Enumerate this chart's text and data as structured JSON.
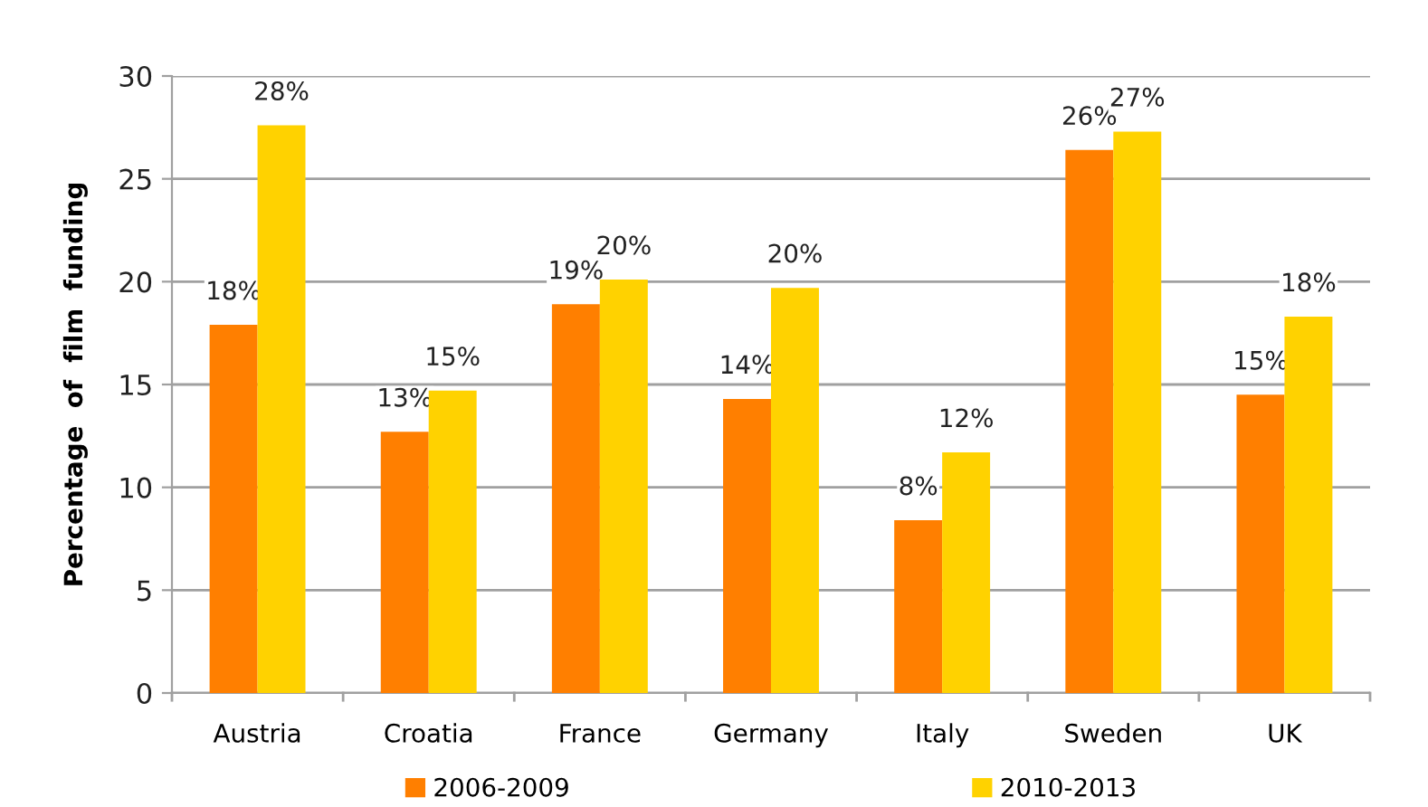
{
  "chart_data": {
    "type": "bar",
    "ylabel": "Percentage  of  film  funding",
    "categories": [
      "Austria",
      "Croatia",
      "France",
      "Germany",
      "Italy",
      "Sweden",
      "UK"
    ],
    "series": [
      {
        "name": "2006-2009",
        "color": "#ff7f00",
        "values": [
          17.9,
          12.7,
          18.9,
          14.3,
          8.4,
          26.4,
          14.5
        ],
        "value_labels": [
          "18%",
          "13%",
          "19%",
          "14%",
          "8%",
          "26%",
          "15%"
        ]
      },
      {
        "name": "2010-2013",
        "color": "#ffd200",
        "values": [
          27.6,
          14.7,
          20.1,
          19.7,
          11.7,
          27.3,
          18.3
        ],
        "value_labels": [
          "28%",
          "15%",
          "20%",
          "20%",
          "12%",
          "27%",
          "18%"
        ]
      }
    ],
    "ylim": [
      0,
      30
    ],
    "yticks": [
      0,
      5,
      10,
      15,
      20,
      25,
      30
    ],
    "grid": "y",
    "legend": "bottom"
  }
}
